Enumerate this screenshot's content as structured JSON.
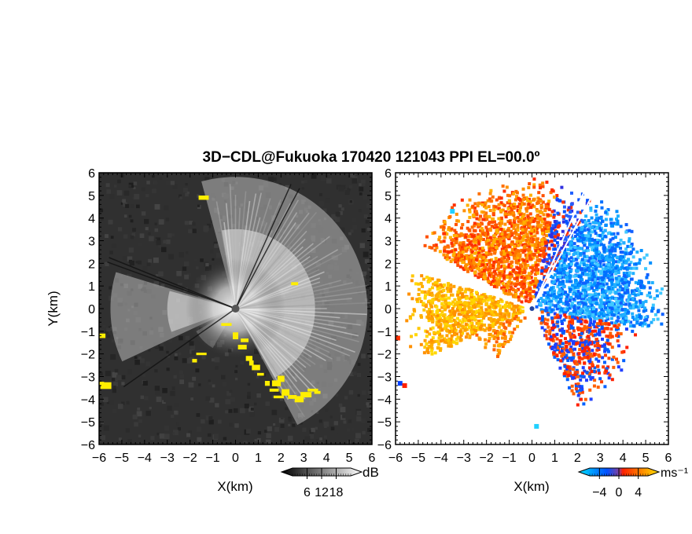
{
  "figure": {
    "title": "3D−CDL@Fukuoka 170420 121043 PPI EL=00.0º"
  },
  "chart_data": [
    {
      "type": "heatmap",
      "name": "snr-ppi",
      "xlabel": "X(km)",
      "ylabel": "Y(km)",
      "xlim": [
        -6,
        6
      ],
      "ylim": [
        -6,
        6
      ],
      "xticks": [
        "−6",
        "−5",
        "−4",
        "−3",
        "−2",
        "−1",
        "0",
        "1",
        "2",
        "3",
        "4",
        "5",
        "6"
      ],
      "yticks": [
        "−6",
        "−5",
        "−4",
        "−3",
        "−2",
        "−1",
        "0",
        "1",
        "2",
        "3",
        "4",
        "5",
        "6"
      ],
      "colorbar": {
        "label": "dB",
        "ticks": [
          "6",
          "12",
          "18"
        ],
        "tick_values": [
          6,
          12,
          18
        ],
        "range": [
          0,
          24
        ],
        "colors": [
          "#000000",
          "#ffffff"
        ]
      },
      "highlight_color": "#ffee00"
    },
    {
      "type": "heatmap",
      "name": "velocity-ppi",
      "xlabel": "X(km)",
      "ylabel": "",
      "xlim": [
        -6,
        6
      ],
      "ylim": [
        -6,
        6
      ],
      "xticks": [
        "−6",
        "−5",
        "−4",
        "−3",
        "−2",
        "−1",
        "0",
        "1",
        "2",
        "3",
        "4",
        "5",
        "6"
      ],
      "yticks": [
        "−6",
        "−5",
        "−4",
        "−3",
        "−2",
        "−1",
        "0",
        "1",
        "2",
        "3",
        "4",
        "5",
        "6"
      ],
      "colorbar": {
        "label": "ms⁻¹",
        "ticks": [
          "−4",
          "0",
          "4"
        ],
        "tick_values": [
          -4,
          0,
          4
        ],
        "range": [
          -6,
          6
        ],
        "colors": [
          "#00e0ff",
          "#0050ff",
          "#ff2000",
          "#ffe000"
        ]
      }
    }
  ]
}
